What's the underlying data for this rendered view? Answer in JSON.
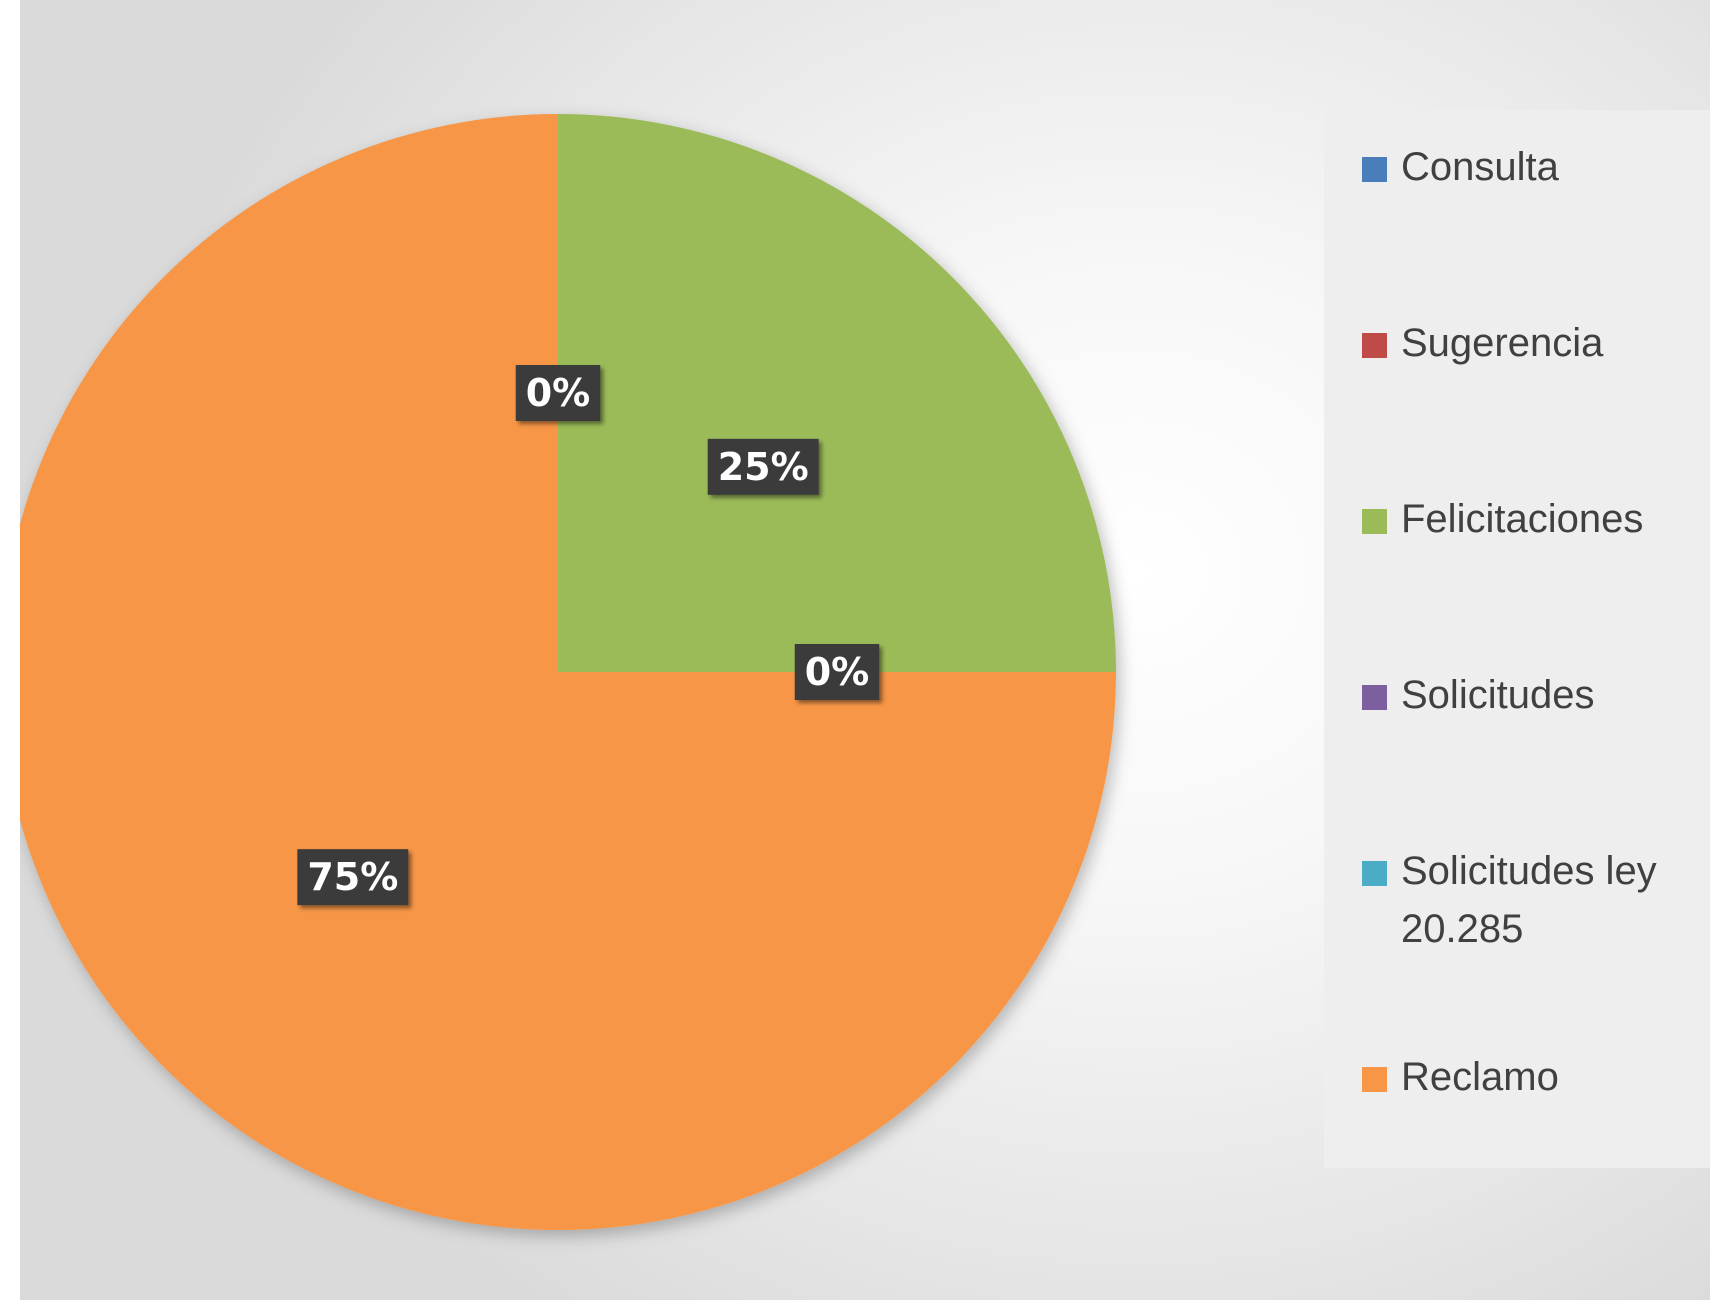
{
  "chart_data": {
    "type": "pie",
    "title": "",
    "categories": [
      "Consulta",
      "Sugerencia",
      "Felicitaciones",
      "Solicitudes",
      "Solicitudes ley 20.285",
      "Reclamo"
    ],
    "values": [
      0,
      0,
      25,
      0,
      0,
      75
    ],
    "value_unit": "%",
    "data_labels": [
      "0%",
      "",
      "25%",
      "0%",
      "",
      "75%"
    ],
    "colors": [
      "#4a7ebb",
      "#be4b48",
      "#9bbb59",
      "#7d5fa0",
      "#4bacc6",
      "#f79646"
    ],
    "legend_position": "right",
    "start_angle_deg": 0
  }
}
